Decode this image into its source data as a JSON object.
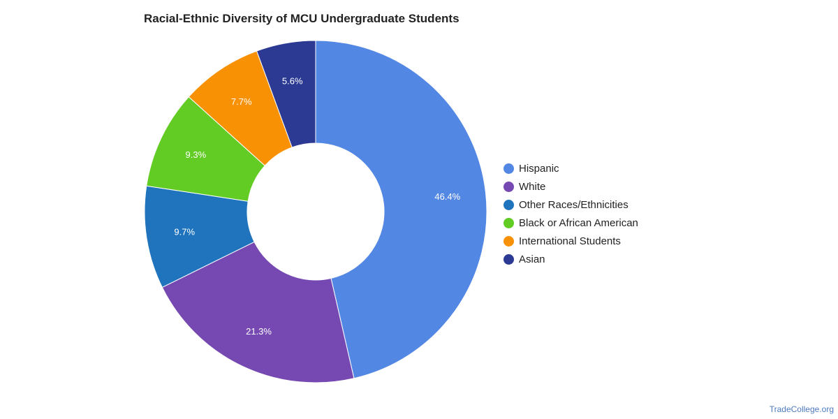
{
  "chart_data": {
    "type": "pie",
    "title": "Racial-Ethnic Diversity of MCU Undergraduate Students",
    "legend_position": "right",
    "donut": true,
    "slices": [
      {
        "name": "Hispanic",
        "value": 46.4,
        "label": "46.4%",
        "color": "#5387e4"
      },
      {
        "name": "White",
        "value": 21.3,
        "label": "21.3%",
        "color": "#7549b1"
      },
      {
        "name": "Other Races/Ethnicities",
        "value": 9.7,
        "label": "9.7%",
        "color": "#1f74bd"
      },
      {
        "name": "Black or African American",
        "value": 9.3,
        "label": "9.3%",
        "color": "#62cc25"
      },
      {
        "name": "International Students",
        "value": 7.7,
        "label": "7.7%",
        "color": "#f99104"
      },
      {
        "name": "Asian",
        "value": 5.6,
        "label": "5.6%",
        "color": "#2c3a93"
      }
    ]
  },
  "footer": {
    "watermark": "TradeCollege.org"
  }
}
